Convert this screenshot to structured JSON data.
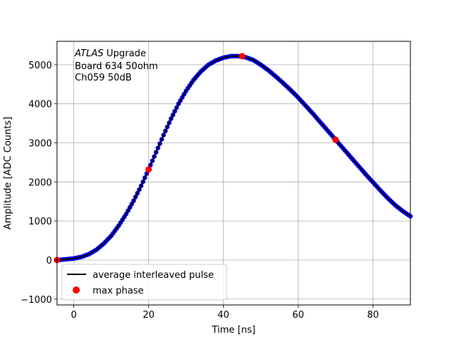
{
  "chart_data": {
    "type": "scatter",
    "xlabel": "Time [ns]",
    "ylabel": "Amplitude [ADC Counts]",
    "xlim": [
      -4.5,
      90
    ],
    "ylim": [
      -1150,
      5600
    ],
    "grid": true,
    "legend_position": "lower left",
    "annotation": {
      "italic": "ATLAS",
      "line1_rest": " Upgrade",
      "line2": " Board 634 50ohm",
      "line3": " Ch059 50dB"
    },
    "xticks": [
      0,
      20,
      40,
      60,
      80
    ],
    "yticks": [
      -1000,
      0,
      1000,
      2000,
      3000,
      4000,
      5000
    ],
    "average_curve": {
      "x": [
        -4.5,
        -2,
        0,
        2,
        4,
        6,
        8,
        10,
        12,
        14,
        16,
        18,
        20,
        22,
        24,
        26,
        28,
        30,
        32,
        34,
        36,
        38,
        40,
        42,
        44,
        46,
        48,
        50,
        52,
        54,
        56,
        58,
        60,
        62,
        64,
        66,
        68,
        70,
        72,
        74,
        76,
        78,
        80,
        82,
        84,
        86,
        88,
        90
      ],
      "y": [
        0,
        20,
        40,
        80,
        150,
        260,
        420,
        620,
        880,
        1180,
        1520,
        1900,
        2320,
        2760,
        3200,
        3620,
        4000,
        4330,
        4610,
        4830,
        5000,
        5110,
        5180,
        5220,
        5220,
        5190,
        5120,
        5000,
        4860,
        4700,
        4530,
        4350,
        4160,
        3950,
        3740,
        3520,
        3300,
        3080,
        2860,
        2640,
        2420,
        2200,
        1990,
        1780,
        1580,
        1400,
        1250,
        1120
      ]
    },
    "samples_color": "#0000ff",
    "series": [
      {
        "name": "average interleaved pulse",
        "color": "#000000",
        "marker": "line"
      },
      {
        "name": "max phase",
        "color": "#ff0000",
        "marker": "circle",
        "x": [
          -4.5,
          20,
          45,
          70
        ],
        "y": [
          0,
          2320,
          5220,
          3080
        ]
      }
    ]
  }
}
